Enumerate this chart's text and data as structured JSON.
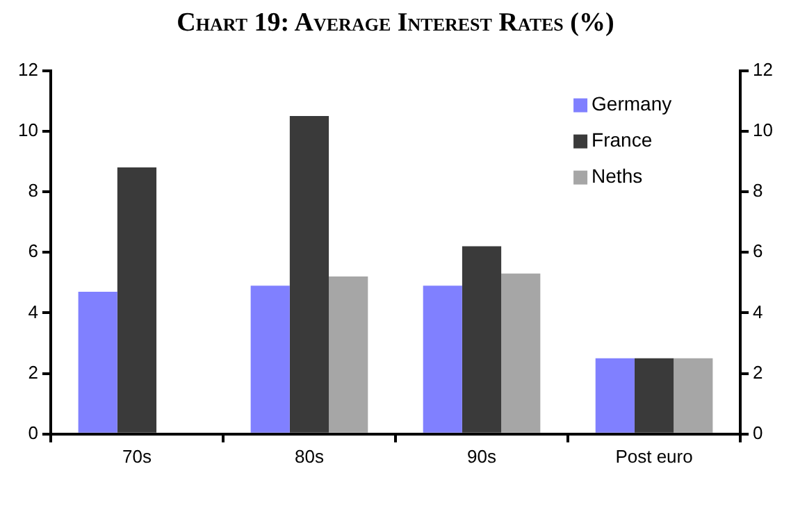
{
  "chart_data": {
    "type": "bar",
    "title": "Chart 19: Average Interest Rates (%)",
    "categories": [
      "70s",
      "80s",
      "90s",
      "Post euro"
    ],
    "series": [
      {
        "name": "Germany",
        "color": "#8080ff",
        "values": [
          4.7,
          4.9,
          4.9,
          2.5
        ]
      },
      {
        "name": "France",
        "color": "#3a3a3a",
        "values": [
          8.8,
          10.5,
          6.2,
          2.5
        ]
      },
      {
        "name": "Neths",
        "color": "#a6a6a6",
        "values": [
          null,
          5.2,
          5.3,
          2.5
        ]
      }
    ],
    "ylim": [
      0,
      12
    ],
    "yticks": [
      0,
      2,
      4,
      6,
      8,
      10,
      12
    ],
    "y2lim": [
      0,
      12
    ],
    "y2ticks": [
      0,
      2,
      4,
      6,
      8,
      10,
      12
    ],
    "grid": false,
    "legend": "top right"
  }
}
